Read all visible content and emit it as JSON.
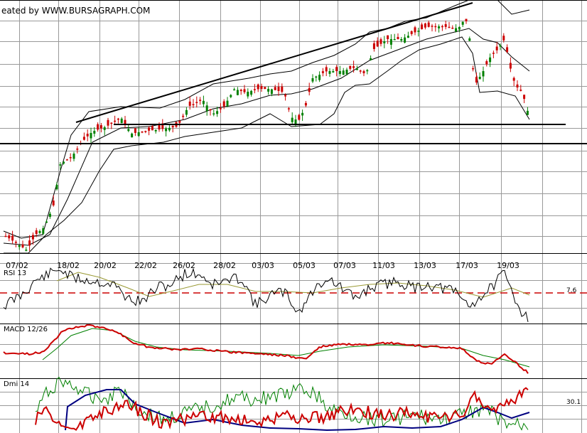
{
  "credit": "eated by WWW.BURSAGRAPH.COM",
  "chart_data": [
    {
      "type": "candlestick",
      "x_tick_labels": [
        "07/02",
        "18/02",
        "20/02",
        "22/02",
        "26/02",
        "28/02",
        "03/03",
        "05/03",
        "07/03",
        "11/03",
        "13/03",
        "17/03",
        "19/03"
      ],
      "grid": true,
      "overlays": [
        "bollinger-bands",
        "moving-average",
        "rising-trendline",
        "support-line"
      ],
      "colors": {
        "up": "#008000",
        "down": "#cc0000",
        "lines": "#000000"
      }
    },
    {
      "type": "line",
      "title": "RSI 13",
      "level_value": "7.6",
      "series_colors": [
        "#000000",
        "#999933"
      ],
      "level_color": "#cc0000"
    },
    {
      "type": "line",
      "title": "MACD 12/26",
      "series_colors": [
        "#cc0000",
        "#008000"
      ]
    },
    {
      "type": "line",
      "title": "Dmi 14",
      "last_value": "30.1",
      "series_colors": [
        "#cc0000",
        "#008000",
        "#000080"
      ]
    }
  ]
}
